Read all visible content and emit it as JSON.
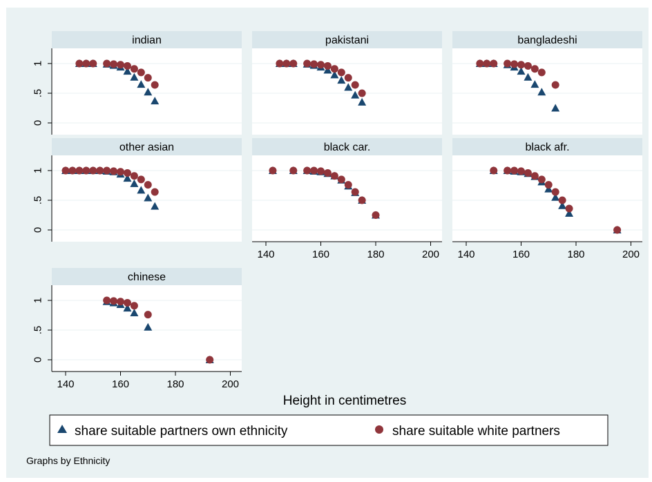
{
  "chart_data": {
    "type": "scatter",
    "xlabel": "Height in centimetres",
    "note": "Graphs by Ethnicity",
    "xlim": [
      140,
      200
    ],
    "ylim": [
      0,
      1
    ],
    "x_ticks": [
      "140",
      "160",
      "180",
      "200"
    ],
    "y_ticks": [
      "0",
      ".5",
      "1"
    ],
    "legend": {
      "position": "bottom",
      "entries": [
        {
          "label": "share suitable partners own ethnicity",
          "marker": "triangle",
          "color": "#1a476f"
        },
        {
          "label": "share suitable white partners",
          "marker": "circle",
          "color": "#90353b"
        }
      ]
    },
    "panels": [
      {
        "title": "indian",
        "own": {
          "x": [
            145,
            147.5,
            150,
            155,
            157.5,
            160,
            162.5,
            165,
            167.5,
            170,
            172.5
          ],
          "y": [
            1,
            1,
            1,
            0.99,
            0.97,
            0.94,
            0.87,
            0.77,
            0.65,
            0.52,
            0.37
          ]
        },
        "white": {
          "x": [
            145,
            147.5,
            150,
            155,
            157.5,
            160,
            162.5,
            165,
            167.5,
            170,
            172.5
          ],
          "y": [
            1,
            1,
            1,
            1,
            0.99,
            0.98,
            0.96,
            0.91,
            0.85,
            0.76,
            0.64
          ]
        }
      },
      {
        "title": "pakistani",
        "own": {
          "x": [
            145,
            147.5,
            150,
            155,
            157.5,
            160,
            162.5,
            165,
            167.5,
            170,
            172.5,
            175
          ],
          "y": [
            1,
            1,
            1,
            0.99,
            0.97,
            0.94,
            0.89,
            0.81,
            0.72,
            0.6,
            0.47,
            0.35
          ]
        },
        "white": {
          "x": [
            145,
            147.5,
            150,
            155,
            157.5,
            160,
            162.5,
            165,
            167.5,
            170,
            172.5,
            175
          ],
          "y": [
            1,
            1,
            1,
            1,
            0.99,
            0.98,
            0.96,
            0.91,
            0.85,
            0.76,
            0.64,
            0.5
          ]
        }
      },
      {
        "title": "bangladeshi",
        "own": {
          "x": [
            145,
            147.5,
            150,
            155,
            157.5,
            160,
            162.5,
            165,
            167.5,
            172.5
          ],
          "y": [
            1,
            1,
            1,
            0.98,
            0.94,
            0.87,
            0.77,
            0.65,
            0.52,
            0.25
          ]
        },
        "white": {
          "x": [
            145,
            147.5,
            150,
            155,
            157.5,
            160,
            162.5,
            165,
            167.5,
            172.5
          ],
          "y": [
            1,
            1,
            1,
            1,
            0.99,
            0.98,
            0.96,
            0.91,
            0.85,
            0.64
          ]
        }
      },
      {
        "title": "other asian",
        "own": {
          "x": [
            140,
            142.5,
            145,
            147.5,
            150,
            152.5,
            155,
            157.5,
            160,
            162.5,
            165,
            167.5,
            170,
            172.5
          ],
          "y": [
            1,
            1,
            1,
            1,
            1,
            1,
            0.99,
            0.98,
            0.94,
            0.87,
            0.78,
            0.67,
            0.54,
            0.4
          ]
        },
        "white": {
          "x": [
            140,
            142.5,
            145,
            147.5,
            150,
            152.5,
            155,
            157.5,
            160,
            162.5,
            165,
            167.5,
            170,
            172.5
          ],
          "y": [
            1,
            1,
            1,
            1,
            1,
            1,
            1,
            0.99,
            0.98,
            0.96,
            0.91,
            0.85,
            0.76,
            0.64
          ]
        }
      },
      {
        "title": "black car.",
        "own": {
          "x": [
            142.5,
            150,
            155,
            157.5,
            160,
            162.5,
            165,
            167.5,
            170,
            172.5,
            175,
            180
          ],
          "y": [
            1,
            1,
            1,
            0.99,
            0.98,
            0.95,
            0.91,
            0.84,
            0.74,
            0.63,
            0.5,
            0.25
          ]
        },
        "white": {
          "x": [
            142.5,
            150,
            155,
            157.5,
            160,
            162.5,
            165,
            167.5,
            170,
            172.5,
            175,
            180
          ],
          "y": [
            1,
            1,
            1,
            1,
            0.99,
            0.96,
            0.91,
            0.85,
            0.76,
            0.64,
            0.5,
            0.25
          ]
        }
      },
      {
        "title": "black afr.",
        "own": {
          "x": [
            150,
            155,
            157.5,
            160,
            162.5,
            165,
            167.5,
            170,
            172.5,
            175,
            177.5,
            195
          ],
          "y": [
            1,
            1,
            0.99,
            0.98,
            0.95,
            0.9,
            0.81,
            0.69,
            0.55,
            0.41,
            0.28,
            0
          ]
        },
        "white": {
          "x": [
            150,
            155,
            157.5,
            160,
            162.5,
            165,
            167.5,
            170,
            172.5,
            175,
            177.5,
            195
          ],
          "y": [
            1,
            1,
            1,
            0.99,
            0.96,
            0.91,
            0.85,
            0.76,
            0.64,
            0.5,
            0.36,
            0
          ]
        }
      },
      {
        "title": "chinese",
        "own": {
          "x": [
            155,
            157.5,
            160,
            162.5,
            165,
            170,
            192.5
          ],
          "y": [
            0.98,
            0.96,
            0.93,
            0.87,
            0.79,
            0.55,
            0
          ]
        },
        "white": {
          "x": [
            155,
            157.5,
            160,
            162.5,
            165,
            170,
            192.5
          ],
          "y": [
            1,
            0.99,
            0.98,
            0.96,
            0.91,
            0.76,
            0
          ]
        }
      }
    ]
  }
}
